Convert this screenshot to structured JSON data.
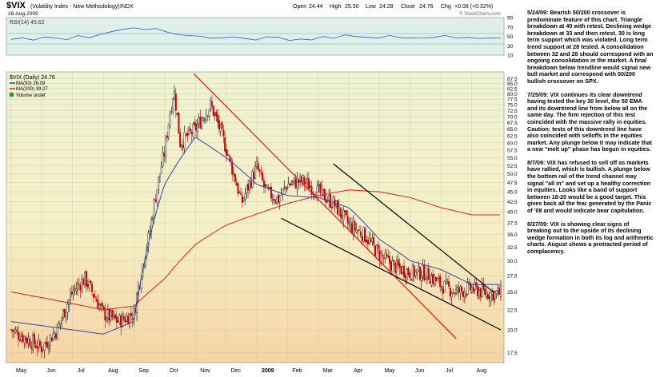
{
  "header": {
    "symbol": "$VIX",
    "name": "(Volatility Index - New Methodology)",
    "exchange": "INDX",
    "date": "28-Aug-2009",
    "open_label": "Open",
    "open": "24.44",
    "high_label": "High",
    "high": "25.50",
    "low_label": "Low",
    "low": "24.28",
    "close_label": "Close",
    "close": "24.76",
    "chg_label": "Chg",
    "chg": "+0.08 (+0.32%)",
    "watermark": "© StockCharts.com"
  },
  "rsi_panel": {
    "label": "RSI(14) 45.62",
    "ticks": [
      "90",
      "70",
      "50",
      "30",
      "10"
    ]
  },
  "legend": {
    "main": "$VIX (Daily) 24.76",
    "ma50": "MA(50) 26.09",
    "ma200": "MA(200) 39.27",
    "volume": "Volume undef"
  },
  "colors": {
    "ma50": "#3344aa",
    "ma200": "#dd2222",
    "up_candle": "#000000",
    "down_candle": "#cc0000",
    "trendline_red": "#ee1111",
    "trendline_black": "#000000",
    "rsi_line": "#3355cc",
    "rsi_bg": "#dff0ea",
    "main_bg_top": "#eef3d2",
    "main_bg_bottom": "#f6d6a8"
  },
  "chart_data": {
    "type": "candlestick",
    "x_labels": [
      "May",
      "Jun",
      "Jul",
      "Aug",
      "Sep",
      "Oct",
      "Nov",
      "Dec",
      "2009",
      "Feb",
      "Mar",
      "Apr",
      "May",
      "Jun",
      "Jul",
      "Aug"
    ],
    "y_ticks": [
      87.5,
      85.0,
      82.5,
      80.0,
      77.5,
      75.0,
      72.5,
      70.0,
      67.5,
      65.0,
      62.5,
      60.0,
      57.5,
      55.0,
      52.5,
      50.0,
      47.5,
      45.0,
      42.5,
      40.0,
      37.5,
      35.0,
      32.5,
      30.0,
      27.5,
      25.0,
      22.5,
      20.0,
      17.5
    ],
    "ylim": [
      16.5,
      91.0
    ],
    "scale": "log",
    "series": [
      {
        "name": "MA(50) 26.09",
        "points": [
          [
            0,
            21
          ],
          [
            3,
            19.5
          ],
          [
            4,
            21
          ],
          [
            5,
            47
          ],
          [
            6,
            62
          ],
          [
            7,
            55
          ],
          [
            8,
            47
          ],
          [
            9,
            44
          ],
          [
            10,
            43.5
          ],
          [
            11,
            41
          ],
          [
            12,
            34
          ],
          [
            13,
            30
          ],
          [
            14,
            28.5
          ],
          [
            15,
            26.1
          ]
        ]
      },
      {
        "name": "MA(200) 39.27",
        "points": [
          [
            0,
            25
          ],
          [
            3,
            22.5
          ],
          [
            4,
            23
          ],
          [
            5,
            27
          ],
          [
            6,
            33
          ],
          [
            7,
            37
          ],
          [
            8,
            39.5
          ],
          [
            9,
            42
          ],
          [
            10,
            44
          ],
          [
            11,
            45.5
          ],
          [
            12,
            45
          ],
          [
            13,
            43.5
          ],
          [
            14,
            41
          ],
          [
            15,
            39.3
          ]
        ]
      }
    ],
    "candles_price_path": [
      [
        0,
        20
      ],
      [
        0.5,
        19
      ],
      [
        1,
        18
      ],
      [
        1.5,
        20
      ],
      [
        2,
        25
      ],
      [
        2.4,
        27
      ],
      [
        3,
        22
      ],
      [
        3.5,
        21
      ],
      [
        4,
        22
      ],
      [
        4.5,
        35
      ],
      [
        5,
        57
      ],
      [
        5.3,
        82
      ],
      [
        5.5,
        60
      ],
      [
        6,
        65
      ],
      [
        6.5,
        75
      ],
      [
        7,
        58
      ],
      [
        7.5,
        42
      ],
      [
        8,
        52
      ],
      [
        8.3,
        45
      ],
      [
        8.7,
        43
      ],
      [
        9,
        47
      ],
      [
        9.5,
        48
      ],
      [
        10,
        45
      ],
      [
        10.5,
        42
      ],
      [
        11,
        37
      ],
      [
        11.5,
        35
      ],
      [
        12,
        31
      ],
      [
        12.5,
        29
      ],
      [
        13,
        28
      ],
      [
        13.5,
        28
      ],
      [
        14,
        26
      ],
      [
        14.5,
        25
      ],
      [
        15,
        25.5
      ],
      [
        15.5,
        24.8
      ]
    ],
    "trendlines": [
      {
        "color": "red",
        "from": [
          5.95,
          90
        ],
        "to": [
          14.5,
          19
        ]
      },
      {
        "color": "black",
        "from": [
          10.5,
          53
        ],
        "to": [
          15.7,
          25
        ]
      },
      {
        "color": "black",
        "from": [
          8.8,
          38.5
        ],
        "to": [
          15.95,
          20
        ]
      }
    ],
    "rsi_values": [
      45,
      48,
      42,
      50,
      46,
      44,
      52,
      47,
      55,
      60,
      66,
      70,
      64,
      68,
      58,
      54,
      50,
      52,
      48,
      46,
      50,
      47,
      44,
      48,
      46,
      42,
      46,
      44,
      48,
      46,
      52,
      50,
      48,
      46,
      50,
      47,
      45,
      48,
      46,
      50,
      47,
      49,
      46,
      48,
      45.6
    ]
  },
  "notes": [
    "5/24/09: Bearish 50/200 crossover is predominate feature of this chart. Triangle breakdown at 40 with retest. Declining wedge breakdown at 33 and then retest. 30 is long term support which was violated. Long term trend support at 28 tested. A consolidation between 32 and 28 should correspond with an ongoing consolidation in the market. A final breakdown below trendline would signal new bull market and correspond with 50/200 bullish crossover on SPX.",
    "7/25/09: VIX continues its clear downtrend having tested the key 30 level, the 50 EMA and its downtrend line from below all on the same day. The firm rejection of this test coincided with the massive rally in equities. Caution: tests of this downtrend line have also coincided with selloffs in the equities market. Any plunge below it may indicate that a new \"melt up\" phase has begun in equities.",
    "8/7/09: VIX has refused to sell off as markets have rallied, which is bullish. A plunge below the bottom rail of the trend channel may signal \"all in\" and set up a healthy correction in equities. Looks like a band of support between 18-20 would be a good target. This gives back all the fear generated by the Panic of '08 and would indicate bear capitulation.",
    "8/27/09: VIX is showing clear signs of breaking out to the upside of its declining wedge formation in both its log and arithmetic charts. August shows a protracted period of complacency."
  ]
}
